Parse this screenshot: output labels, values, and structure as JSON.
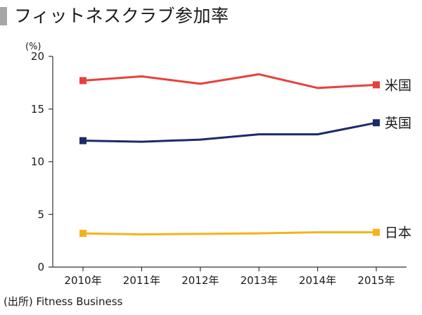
{
  "title": "フィットネスクラブ参加率",
  "source": "(出所) Fitness Business",
  "chart_data": {
    "type": "line",
    "title": "フィットネスクラブ参加率",
    "xlabel": "",
    "ylabel": "(%)",
    "categories": [
      "2010年",
      "2011年",
      "2012年",
      "2013年",
      "2014年",
      "2015年"
    ],
    "ylim": [
      0,
      20
    ],
    "yticks": [
      0,
      5,
      10,
      15,
      20
    ],
    "grid": false,
    "legend": "right-end labels",
    "series": [
      {
        "name": "米国",
        "color": "#e8413c",
        "values": [
          17.7,
          18.1,
          17.4,
          18.3,
          17.0,
          17.3
        ]
      },
      {
        "name": "英国",
        "color": "#1c2a6b",
        "values": [
          12.0,
          11.9,
          12.1,
          12.6,
          12.6,
          13.7
        ]
      },
      {
        "name": "日本",
        "color": "#f5b21b",
        "values": [
          3.2,
          3.1,
          3.15,
          3.2,
          3.3,
          3.3
        ]
      }
    ]
  }
}
